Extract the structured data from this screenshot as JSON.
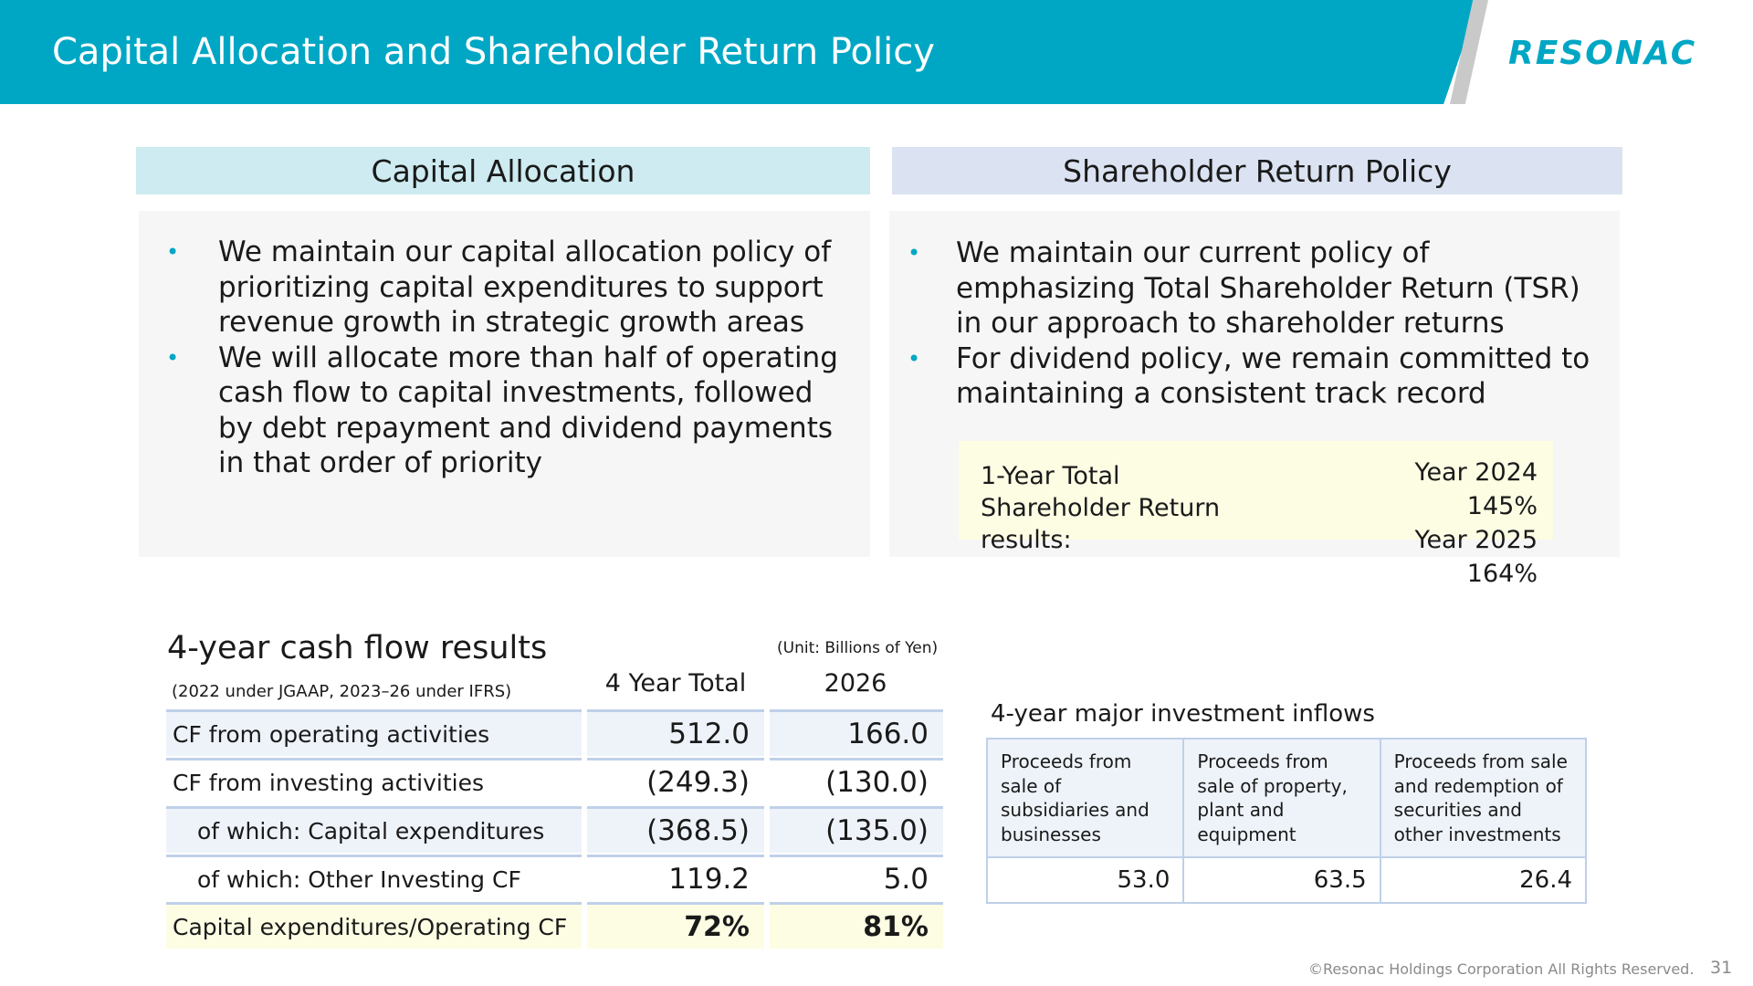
{
  "header": {
    "title": "Capital Allocation and Shareholder Return Policy",
    "logo_text": "RESONAC",
    "accent_color": "#00a7c4"
  },
  "capital_allocation": {
    "heading": "Capital Allocation",
    "bullets": [
      "We maintain our capital allocation policy of prioritizing capital expenditures to support revenue growth in strategic growth areas",
      "We will allocate more than half of operating cash flow to capital investments, followed by debt repayment and dividend payments in that order of priority"
    ]
  },
  "shareholder_return": {
    "heading": "Shareholder Return Policy",
    "bullets": [
      "We maintain our current policy of emphasizing Total Shareholder Return (TSR) in our approach to shareholder returns",
      "For dividend policy, we remain committed to maintaining a consistent track record"
    ],
    "tsr": {
      "label": "1-Year Total Shareholder Return results:",
      "results": [
        "Year 2024 145%",
        "Year 2025 164%"
      ]
    }
  },
  "cash_flow": {
    "title": "4-year cash flow results",
    "note": "(2022 under JGAAP, 2023–26 under IFRS)",
    "unit": "(Unit: Billions of Yen)",
    "columns": [
      "4 Year Total",
      "2026"
    ],
    "rows": [
      {
        "label": "CF from operating activities",
        "total": "512.0",
        "y2026": "166.0"
      },
      {
        "label": "CF from investing activities",
        "total": "(249.3)",
        "y2026": "(130.0)"
      },
      {
        "label": "of which: Capital expenditures",
        "total": "(368.5)",
        "y2026": "(135.0)"
      },
      {
        "label": "of which: Other Investing CF",
        "total": "119.2",
        "y2026": "5.0"
      },
      {
        "label": "Capital expenditures/Operating CF",
        "total": "72%",
        "y2026": "81%"
      }
    ]
  },
  "investment_inflows": {
    "title": "4-year major investment inflows",
    "headers": [
      "Proceeds from sale of subsidiaries and businesses",
      "Proceeds from sale of property, plant and equipment",
      "Proceeds from sale and redemption of securities and other investments"
    ],
    "values": [
      "53.0",
      "63.5",
      "26.4"
    ]
  },
  "footer": {
    "copyright": "©Resonac Holdings Corporation  All Rights Reserved.",
    "page": "31"
  }
}
